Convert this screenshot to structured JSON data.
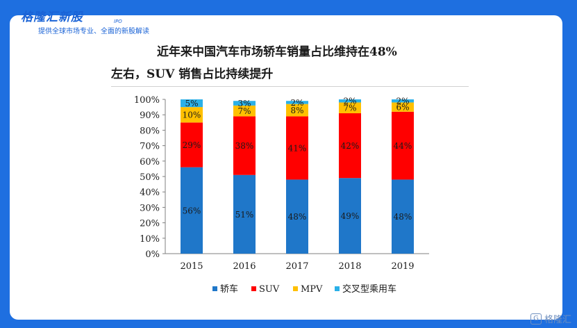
{
  "header": {
    "brand": "格隆汇新股",
    "brand_tag": "IPO",
    "tagline": "提供全球市场专业、全面的新股解读"
  },
  "watermark": {
    "badge": "G",
    "text": "格隆汇"
  },
  "chart_data": {
    "type": "bar",
    "stacked": true,
    "title": "近年来中国汽车市场轿车销量占比维持在48%左右，SUV销售占比持续提升",
    "title_lines": [
      "近年来中国汽车市场轿车销量占比维持在48%",
      "左右，SUV 销售占比持续提升"
    ],
    "categories": [
      "2015",
      "2016",
      "2017",
      "2018",
      "2019"
    ],
    "series": [
      {
        "name": "轿车",
        "color": "#1f77c9",
        "values": [
          56,
          51,
          48,
          49,
          48
        ]
      },
      {
        "name": "SUV",
        "color": "#ff0000",
        "values": [
          29,
          38,
          41,
          42,
          44
        ]
      },
      {
        "name": "MPV",
        "color": "#ffc000",
        "values": [
          10,
          7,
          8,
          7,
          6
        ]
      },
      {
        "name": "交叉型乘用车",
        "color": "#2ab0e8",
        "values": [
          5,
          3,
          2,
          2,
          2
        ]
      }
    ],
    "ylim": [
      0,
      100
    ],
    "yticks": [
      "0%",
      "10%",
      "20%",
      "30%",
      "40%",
      "50%",
      "60%",
      "70%",
      "80%",
      "90%",
      "100%"
    ],
    "value_suffix": "%",
    "xlabel": "",
    "ylabel": "",
    "legend_position": "bottom"
  }
}
